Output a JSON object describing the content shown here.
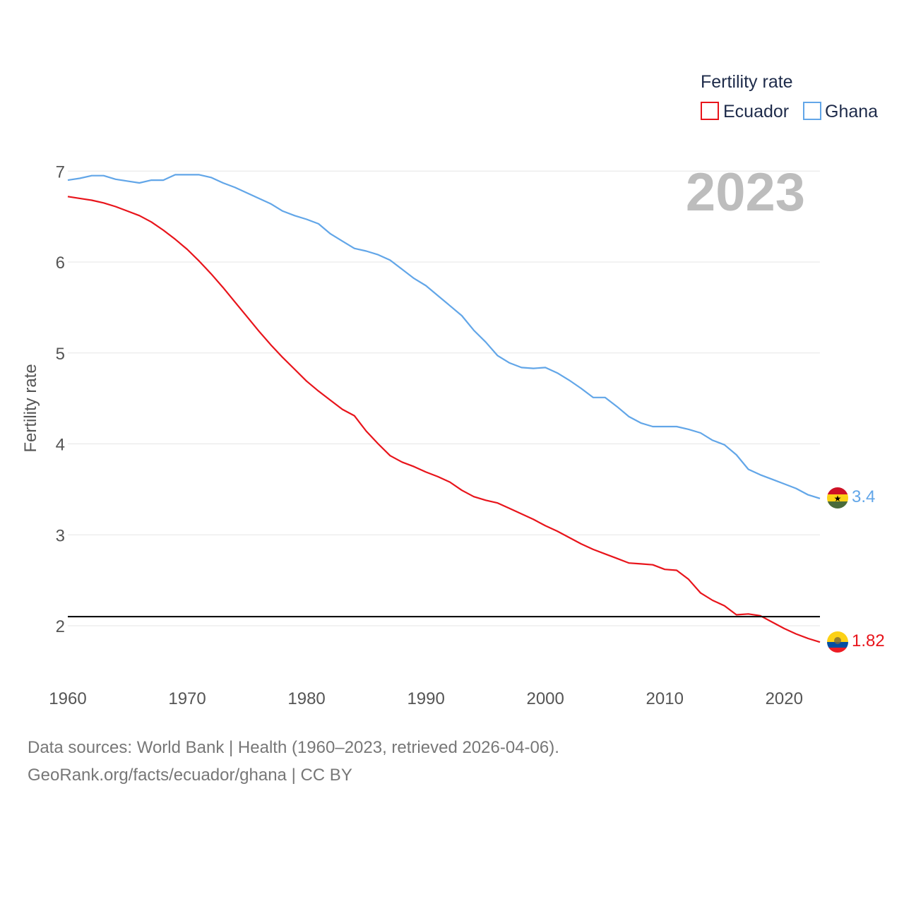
{
  "chart_data": {
    "type": "line",
    "ylabel": "Fertility rate",
    "xlabel": "",
    "legend_title": "Fertility rate",
    "year_label": "2023",
    "xlim": [
      1960,
      2023
    ],
    "ylim": [
      1.5,
      7.2
    ],
    "yticks": [
      2,
      3,
      4,
      5,
      6,
      7
    ],
    "xticks": [
      1960,
      1970,
      1980,
      1990,
      2000,
      2010,
      2020
    ],
    "reference_line": 2.1,
    "grid": true,
    "legend_position": "top-right",
    "series": [
      {
        "name": "Ecuador",
        "color": "#e8141b",
        "end_label": "1.82",
        "flag": "ecuador-flag",
        "x": [
          1960,
          1961,
          1962,
          1963,
          1964,
          1965,
          1966,
          1967,
          1968,
          1969,
          1970,
          1971,
          1972,
          1973,
          1974,
          1975,
          1976,
          1977,
          1978,
          1979,
          1980,
          1981,
          1982,
          1983,
          1984,
          1985,
          1986,
          1987,
          1988,
          1989,
          1990,
          1991,
          1992,
          1993,
          1994,
          1995,
          1996,
          1997,
          1998,
          1999,
          2000,
          2001,
          2002,
          2003,
          2004,
          2005,
          2006,
          2007,
          2008,
          2009,
          2010,
          2011,
          2012,
          2013,
          2014,
          2015,
          2016,
          2017,
          2018,
          2019,
          2020,
          2021,
          2022,
          2023
        ],
        "values": [
          6.72,
          6.7,
          6.68,
          6.65,
          6.61,
          6.56,
          6.51,
          6.44,
          6.35,
          6.25,
          6.14,
          6.01,
          5.87,
          5.72,
          5.56,
          5.4,
          5.24,
          5.09,
          4.95,
          4.82,
          4.69,
          4.58,
          4.48,
          4.38,
          4.31,
          4.14,
          4.0,
          3.87,
          3.8,
          3.75,
          3.69,
          3.64,
          3.58,
          3.49,
          3.42,
          3.38,
          3.35,
          3.29,
          3.23,
          3.17,
          3.1,
          3.04,
          2.97,
          2.9,
          2.84,
          2.79,
          2.74,
          2.69,
          2.68,
          2.67,
          2.62,
          2.61,
          2.51,
          2.36,
          2.28,
          2.22,
          2.12,
          2.13,
          2.11,
          2.04,
          1.97,
          1.91,
          1.86,
          1.82
        ]
      },
      {
        "name": "Ghana",
        "color": "#62a6e8",
        "end_label": "3.4",
        "flag": "ghana-flag",
        "x": [
          1960,
          1961,
          1962,
          1963,
          1964,
          1965,
          1966,
          1967,
          1968,
          1969,
          1970,
          1971,
          1972,
          1973,
          1974,
          1975,
          1976,
          1977,
          1978,
          1979,
          1980,
          1981,
          1982,
          1983,
          1984,
          1985,
          1986,
          1987,
          1988,
          1989,
          1990,
          1991,
          1992,
          1993,
          1994,
          1995,
          1996,
          1997,
          1998,
          1999,
          2000,
          2001,
          2002,
          2003,
          2004,
          2005,
          2006,
          2007,
          2008,
          2009,
          2010,
          2011,
          2012,
          2013,
          2014,
          2015,
          2016,
          2017,
          2018,
          2019,
          2020,
          2021,
          2022,
          2023
        ],
        "values": [
          6.9,
          6.92,
          6.95,
          6.95,
          6.91,
          6.89,
          6.87,
          6.9,
          6.9,
          6.96,
          6.96,
          6.96,
          6.93,
          6.87,
          6.82,
          6.76,
          6.7,
          6.64,
          6.56,
          6.51,
          6.47,
          6.42,
          6.31,
          6.23,
          6.15,
          6.12,
          6.08,
          6.02,
          5.92,
          5.82,
          5.74,
          5.63,
          5.52,
          5.41,
          5.25,
          5.12,
          4.97,
          4.89,
          4.84,
          4.83,
          4.84,
          4.78,
          4.7,
          4.61,
          4.51,
          4.51,
          4.41,
          4.3,
          4.23,
          4.19,
          4.19,
          4.19,
          4.16,
          4.12,
          4.04,
          3.99,
          3.88,
          3.72,
          3.66,
          3.61,
          3.56,
          3.51,
          3.44,
          3.4
        ]
      }
    ]
  },
  "footer": {
    "source_line": "Data sources: World Bank | Health (1960–2023, retrieved 2026-04-06).",
    "credit_line": "GeoRank.org/facts/ecuador/ghana | CC BY"
  }
}
